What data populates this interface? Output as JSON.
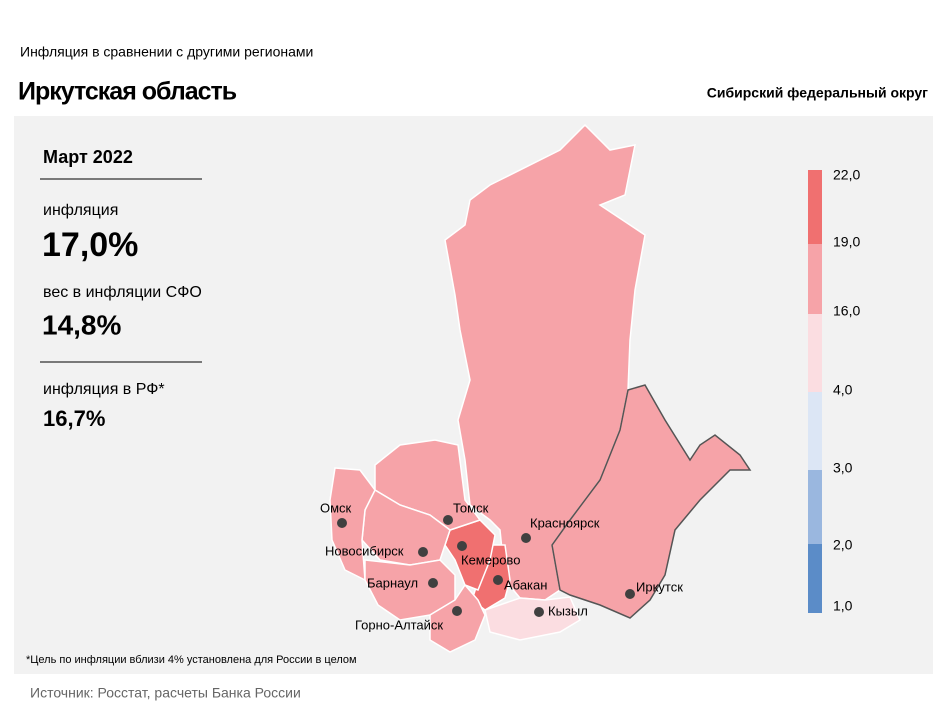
{
  "header": {
    "subtitle": "Инфляция  в сравнении  с другими  регионами",
    "title": "Иркутская область",
    "district": "Сибирский федеральный округ"
  },
  "panel": {
    "period": "Март 2022",
    "inflation_label": "инфляция",
    "inflation": "17,0%",
    "weight_label": "вес в инфляции  СФО",
    "weight": "14,8%",
    "rf_label": "инфляция  в РФ*",
    "rf": "16,7%"
  },
  "legend": {
    "ticks": [
      "22,0",
      "19,0",
      "16,0",
      "4,0",
      "3,0",
      "2,0",
      "1,0"
    ]
  },
  "cities": [
    "Омск",
    "Томск",
    "Красноярск",
    "Новосибирск",
    "Кемерово",
    "Барнаул",
    "Абакан",
    "Иркутск",
    "Горно-Алтайск",
    "Кызыл"
  ],
  "footnote": "*Цель по инфляции вблизи 4% установлена для России в целом",
  "source": "Источник: Росстат, расчеты Банка России"
}
